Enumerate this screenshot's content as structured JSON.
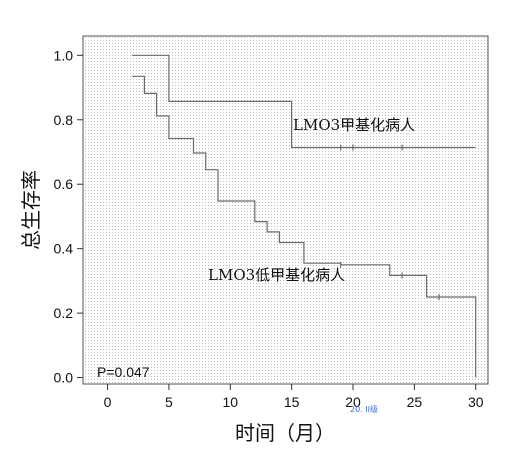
{
  "chart_data": {
    "type": "line",
    "step": true,
    "xlabel": "时间（月）",
    "ylabel": "总生存率",
    "xlim": [
      -2,
      31
    ],
    "ylim": [
      -0.02,
      1.06
    ],
    "xticks": [
      0,
      5,
      10,
      15,
      20,
      25,
      30
    ],
    "yticks": [
      0.0,
      0.2,
      0.4,
      0.6,
      0.8,
      1.0
    ],
    "ytick_labels": [
      "0.0",
      "0.2",
      "0.4",
      "0.6",
      "0.8",
      "1.0"
    ],
    "annotation": "P=0.047",
    "watermark": "20. II级",
    "series": [
      {
        "name": "LMO3甲基化病人",
        "points": [
          [
            2,
            1.0
          ],
          [
            5,
            1.0
          ],
          [
            5,
            0.857
          ],
          [
            15,
            0.857
          ],
          [
            15,
            0.714
          ],
          [
            30,
            0.714
          ]
        ],
        "censored": [
          [
            19,
            0.714
          ],
          [
            20,
            0.714
          ],
          [
            24,
            0.714
          ]
        ]
      },
      {
        "name": "LMO3低甲基化病人",
        "points": [
          [
            2,
            0.935
          ],
          [
            3,
            0.935
          ],
          [
            3,
            0.882
          ],
          [
            4,
            0.882
          ],
          [
            4,
            0.812
          ],
          [
            5,
            0.812
          ],
          [
            5,
            0.742
          ],
          [
            7,
            0.742
          ],
          [
            7,
            0.697
          ],
          [
            8,
            0.697
          ],
          [
            8,
            0.645
          ],
          [
            9,
            0.645
          ],
          [
            9,
            0.548
          ],
          [
            12,
            0.548
          ],
          [
            12,
            0.484
          ],
          [
            13,
            0.484
          ],
          [
            13,
            0.452
          ],
          [
            14,
            0.452
          ],
          [
            14,
            0.419
          ],
          [
            16,
            0.419
          ],
          [
            16,
            0.387
          ],
          [
            16,
            0.355
          ],
          [
            19,
            0.355
          ],
          [
            19,
            0.35
          ],
          [
            23,
            0.35
          ],
          [
            23,
            0.317
          ],
          [
            26,
            0.317
          ],
          [
            26,
            0.25
          ],
          [
            30,
            0.25
          ],
          [
            30,
            0.0
          ]
        ],
        "censored": [
          [
            19,
            0.35
          ],
          [
            24,
            0.317
          ],
          [
            27,
            0.25
          ]
        ]
      }
    ]
  }
}
